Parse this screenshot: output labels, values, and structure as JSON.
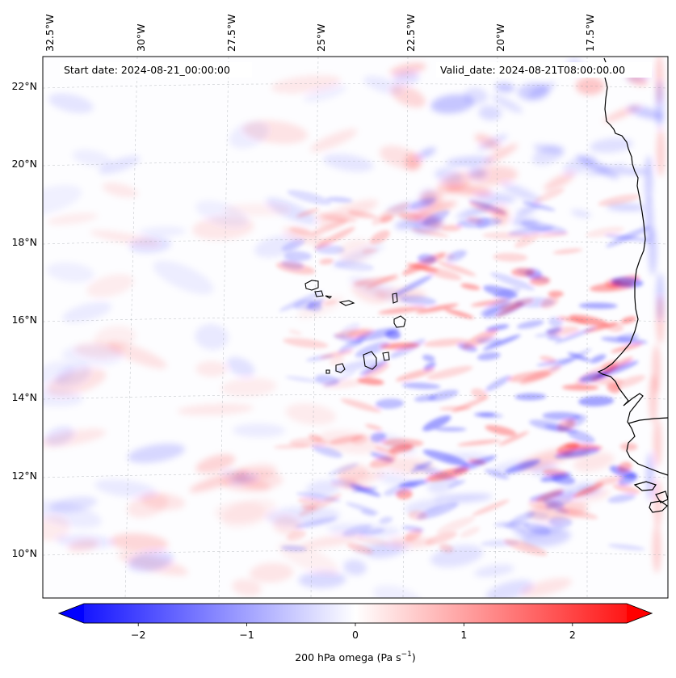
{
  "map": {
    "start_label": "Start date: 2024-08-21_00:00:00",
    "valid_label": "Valid_date: 2024-08-21T08:00:00.00",
    "lon_ticks": [
      "32.5°W",
      "30°W",
      "27.5°W",
      "25°W",
      "22.5°W",
      "20°W",
      "17.5°W"
    ],
    "lat_ticks": [
      "22°N",
      "20°N",
      "18°N",
      "16°N",
      "14°N",
      "12°N",
      "10°N"
    ],
    "colorbar": {
      "ticks": [
        "−2",
        "−1",
        "0",
        "1",
        "2"
      ],
      "tick_values": [
        -2,
        -1,
        0,
        1,
        2
      ],
      "range": [
        -2.5,
        2.5
      ],
      "label": "200 hPa omega (Pa s",
      "label_sup": "−1",
      "label_tail": ")",
      "cmap": [
        "#0000ff",
        "#ffffff",
        "#ff0000"
      ]
    },
    "colors": {
      "negative": "#0000ff",
      "positive": "#ff0000",
      "coast": "#000000",
      "grid": "#9aa0a6"
    }
  }
}
